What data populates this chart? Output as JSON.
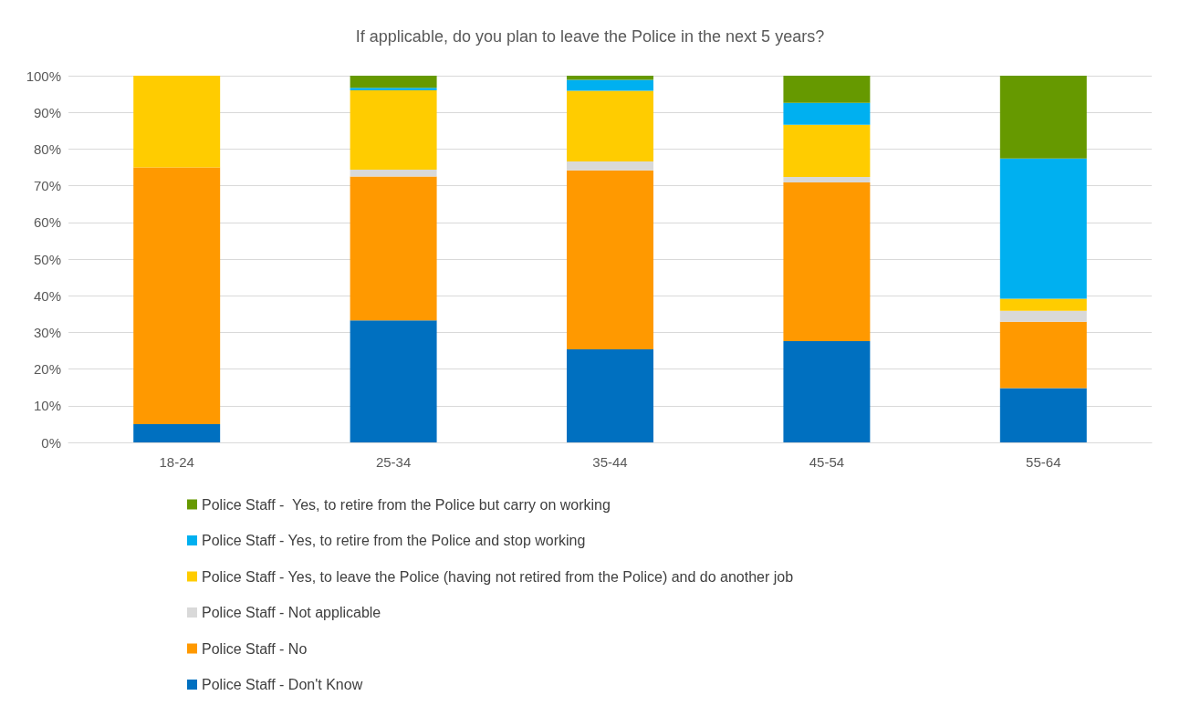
{
  "chart_data": {
    "type": "bar",
    "title": "If applicable, do you plan to leave the Police in the next 5 years?",
    "categories": [
      "18-24",
      "25-34",
      "35-44",
      "45-54",
      "55-64"
    ],
    "stacked": true,
    "grid": "y",
    "legend": "bottom",
    "ylim": [
      0,
      100
    ],
    "yticks": [
      {
        "value": 0,
        "label": "0%"
      },
      {
        "value": 10,
        "label": "10%"
      },
      {
        "value": 20,
        "label": "20%"
      },
      {
        "value": 30,
        "label": "30%"
      },
      {
        "value": 40,
        "label": "40%"
      },
      {
        "value": 50,
        "label": "50%"
      },
      {
        "value": 60,
        "label": "60%"
      },
      {
        "value": 70,
        "label": "70%"
      },
      {
        "value": 80,
        "label": "80%"
      },
      {
        "value": 90,
        "label": "90%"
      },
      {
        "value": 100,
        "label": "100%"
      }
    ],
    "series": [
      {
        "name": "Police Staff - Don't Know",
        "color": "#0070c0",
        "values": [
          5,
          33.3,
          25.4,
          27.6,
          14.8
        ]
      },
      {
        "name": "Police Staff - No",
        "color": "#ff9900",
        "values": [
          70,
          39.2,
          48.8,
          43.3,
          18.1
        ]
      },
      {
        "name": "Police Staff - Not applicable",
        "color": "#d9d9d9",
        "values": [
          0,
          1.9,
          2.4,
          1.5,
          3.0
        ]
      },
      {
        "name": "Police Staff - Yes, to leave the Police (having not retired from the Police) and do another job",
        "color": "#ffcc00",
        "values": [
          25,
          21.6,
          19.3,
          14.2,
          3.3
        ]
      },
      {
        "name": "Police Staff - Yes, to retire from the Police and stop working",
        "color": "#00b0f0",
        "values": [
          0,
          0.7,
          3.0,
          6.0,
          38.2
        ]
      },
      {
        "name": "Police Staff -  Yes, to retire from the Police but carry on working",
        "color": "#669900",
        "values": [
          0,
          3.3,
          1.1,
          7.4,
          22.6
        ]
      }
    ]
  }
}
